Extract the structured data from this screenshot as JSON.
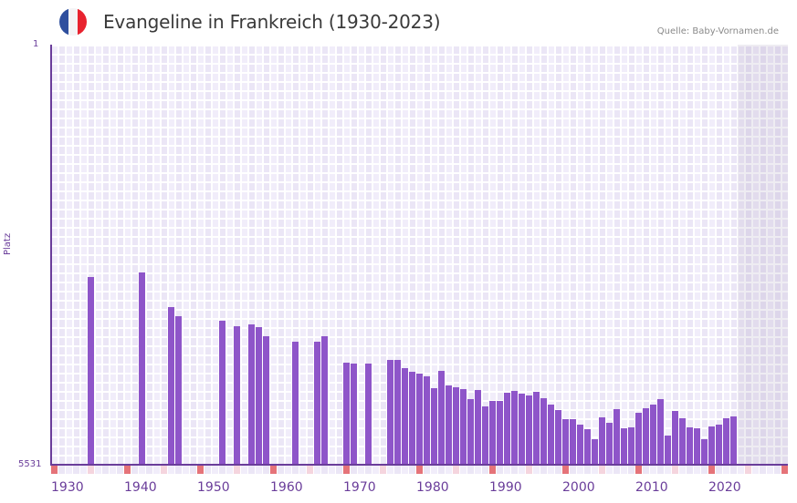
{
  "header": {
    "title": "Evangeline in Frankreich (1930-2023)",
    "source": "Quelle: Baby-Vornamen.de",
    "flag_icon": "france-flag-icon",
    "flag_colors": [
      "#2f4f9e",
      "#f4f4f6",
      "#e8232f"
    ]
  },
  "axes": {
    "y_top_label": "1",
    "y_bottom_label": "5531",
    "y_title": "Platz",
    "x_labels": [
      "1930",
      "1940",
      "1950",
      "1960",
      "1970",
      "1980",
      "1990",
      "2000",
      "2010",
      "2020"
    ]
  },
  "colors": {
    "bar": "#8e55c9",
    "axis": "#6a3d9a",
    "decade_marker": "#e57379",
    "half_decade_marker": "#f5d5de",
    "grid_cell_a": "#f1edfa",
    "grid_cell_b": "#ebe6f6",
    "future_shade": "#e2deee"
  },
  "chart_data": {
    "type": "bar",
    "title": "Evangeline in Frankreich (1930-2023)",
    "xlabel": "",
    "ylabel": "Platz",
    "y_inverted": true,
    "ylim": [
      1,
      5531
    ],
    "xlim": [
      1930,
      2030
    ],
    "grid": true,
    "legend": null,
    "annotations": [
      "Quelle: Baby-Vornamen.de"
    ],
    "x_tick_labels": [
      "1930",
      "1940",
      "1950",
      "1960",
      "1970",
      "1980",
      "1990",
      "2000",
      "2010",
      "2020"
    ],
    "categories": [
      1935,
      1942,
      1946,
      1947,
      1953,
      1955,
      1957,
      1958,
      1959,
      1963,
      1966,
      1967,
      1970,
      1971,
      1973,
      1976,
      1977,
      1978,
      1979,
      1980,
      1981,
      1982,
      1983,
      1984,
      1985,
      1986,
      1987,
      1988,
      1989,
      1990,
      1991,
      1992,
      1993,
      1994,
      1995,
      1996,
      1997,
      1998,
      1999,
      2000,
      2001,
      2002,
      2003,
      2004,
      2005,
      2006,
      2007,
      2008,
      2009,
      2010,
      2011,
      2012,
      2013,
      2014,
      2015,
      2016,
      2017,
      2018,
      2019,
      2020,
      2021,
      2022,
      2023
    ],
    "values": [
      3060,
      3000,
      3456,
      3576,
      3636,
      3708,
      3684,
      3720,
      3840,
      3912,
      3912,
      3840,
      4188,
      4200,
      4200,
      4152,
      4152,
      4260,
      4308,
      4332,
      4368,
      4524,
      4296,
      4488,
      4512,
      4536,
      4668,
      4548,
      4764,
      4692,
      4692,
      4584,
      4560,
      4596,
      4620,
      4572,
      4656,
      4740,
      4812,
      4932,
      4932,
      5004,
      5064,
      5196,
      4908,
      4980,
      4800,
      5052,
      5040,
      4848,
      4788,
      4740,
      4668,
      5148,
      4824,
      4920,
      5040,
      5052,
      5196,
      5028,
      5004,
      4920,
      4896
    ]
  }
}
